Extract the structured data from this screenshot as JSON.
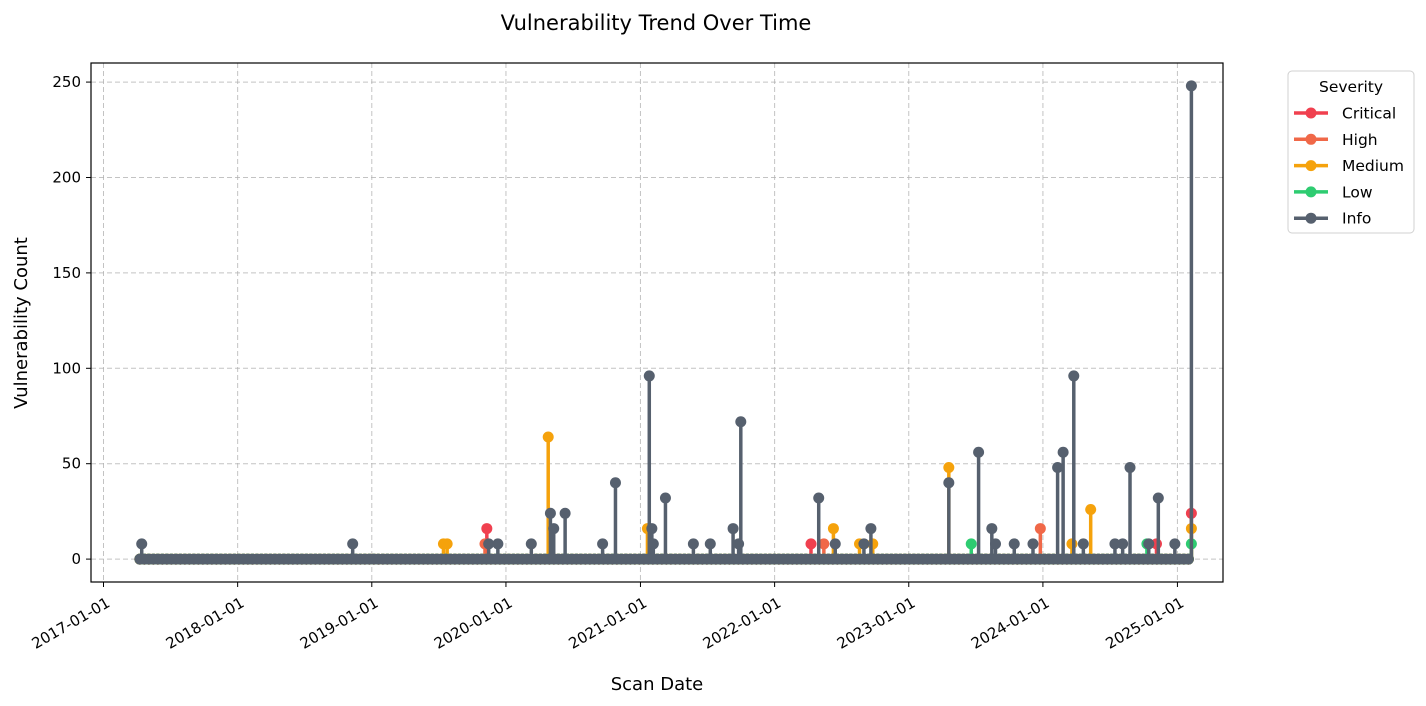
{
  "chart_data": {
    "type": "line",
    "title": "Vulnerability Trend Over Time",
    "xlabel": "Scan Date",
    "ylabel": "Vulnerability Count",
    "xlim": [
      "2016-11-28",
      "2025-05-05"
    ],
    "ylim": [
      -12,
      260
    ],
    "x_ticks": [
      "2017-01-01",
      "2018-01-01",
      "2019-01-01",
      "2020-01-01",
      "2021-01-01",
      "2022-01-01",
      "2023-01-01",
      "2024-01-01",
      "2025-01-01"
    ],
    "y_ticks": [
      0,
      50,
      100,
      150,
      200,
      250
    ],
    "grid": true,
    "x_range": [
      "2017-04-10",
      "2025-02-10"
    ],
    "legend": {
      "title": "Severity",
      "position": "outside-top-right"
    },
    "series": [
      {
        "name": "Critical",
        "color": "#f0404f",
        "spikes": [
          [
            "2019-11-10",
            16
          ],
          [
            "2022-04-10",
            8
          ],
          [
            "2024-11-05",
            8
          ],
          [
            "2025-02-08",
            24
          ]
        ]
      },
      {
        "name": "High",
        "color": "#f06848",
        "spikes": [
          [
            "2019-11-05",
            8
          ],
          [
            "2022-05-15",
            8
          ],
          [
            "2023-12-25",
            16
          ]
        ]
      },
      {
        "name": "Medium",
        "color": "#f5a20c",
        "spikes": [
          [
            "2019-07-15",
            8
          ],
          [
            "2019-07-25",
            8
          ],
          [
            "2020-04-25",
            64
          ],
          [
            "2021-01-20",
            16
          ],
          [
            "2022-06-10",
            16
          ],
          [
            "2022-08-20",
            8
          ],
          [
            "2022-09-25",
            8
          ],
          [
            "2023-04-20",
            48
          ],
          [
            "2024-03-20",
            8
          ],
          [
            "2024-05-10",
            26
          ],
          [
            "2025-02-08",
            16
          ]
        ]
      },
      {
        "name": "Low",
        "color": "#2ecc71",
        "spikes": [
          [
            "2023-06-20",
            8
          ],
          [
            "2024-10-10",
            8
          ],
          [
            "2025-02-08",
            8
          ]
        ]
      },
      {
        "name": "Info",
        "color": "#56606e",
        "spikes": [
          [
            "2017-04-15",
            8
          ],
          [
            "2018-11-10",
            8
          ],
          [
            "2019-11-15",
            8
          ],
          [
            "2019-12-10",
            8
          ],
          [
            "2020-03-10",
            8
          ],
          [
            "2020-05-01",
            24
          ],
          [
            "2020-05-10",
            16
          ],
          [
            "2020-06-10",
            24
          ],
          [
            "2020-09-20",
            8
          ],
          [
            "2020-10-25",
            40
          ],
          [
            "2021-01-25",
            96
          ],
          [
            "2021-02-01",
            16
          ],
          [
            "2021-02-05",
            8
          ],
          [
            "2021-03-10",
            32
          ],
          [
            "2021-05-25",
            8
          ],
          [
            "2021-07-10",
            8
          ],
          [
            "2021-09-10",
            16
          ],
          [
            "2021-09-25",
            8
          ],
          [
            "2021-10-01",
            72
          ],
          [
            "2022-05-01",
            32
          ],
          [
            "2022-06-15",
            8
          ],
          [
            "2022-09-01",
            8
          ],
          [
            "2022-09-20",
            16
          ],
          [
            "2023-04-20",
            40
          ],
          [
            "2023-07-10",
            56
          ],
          [
            "2023-08-15",
            16
          ],
          [
            "2023-08-25",
            8
          ],
          [
            "2023-10-15",
            8
          ],
          [
            "2023-12-05",
            8
          ],
          [
            "2024-02-10",
            48
          ],
          [
            "2024-02-25",
            56
          ],
          [
            "2024-03-25",
            96
          ],
          [
            "2024-04-20",
            8
          ],
          [
            "2024-07-15",
            8
          ],
          [
            "2024-08-05",
            8
          ],
          [
            "2024-08-25",
            48
          ],
          [
            "2024-10-15",
            8
          ],
          [
            "2024-11-10",
            32
          ],
          [
            "2024-12-25",
            8
          ],
          [
            "2025-02-08",
            248
          ]
        ]
      }
    ]
  }
}
